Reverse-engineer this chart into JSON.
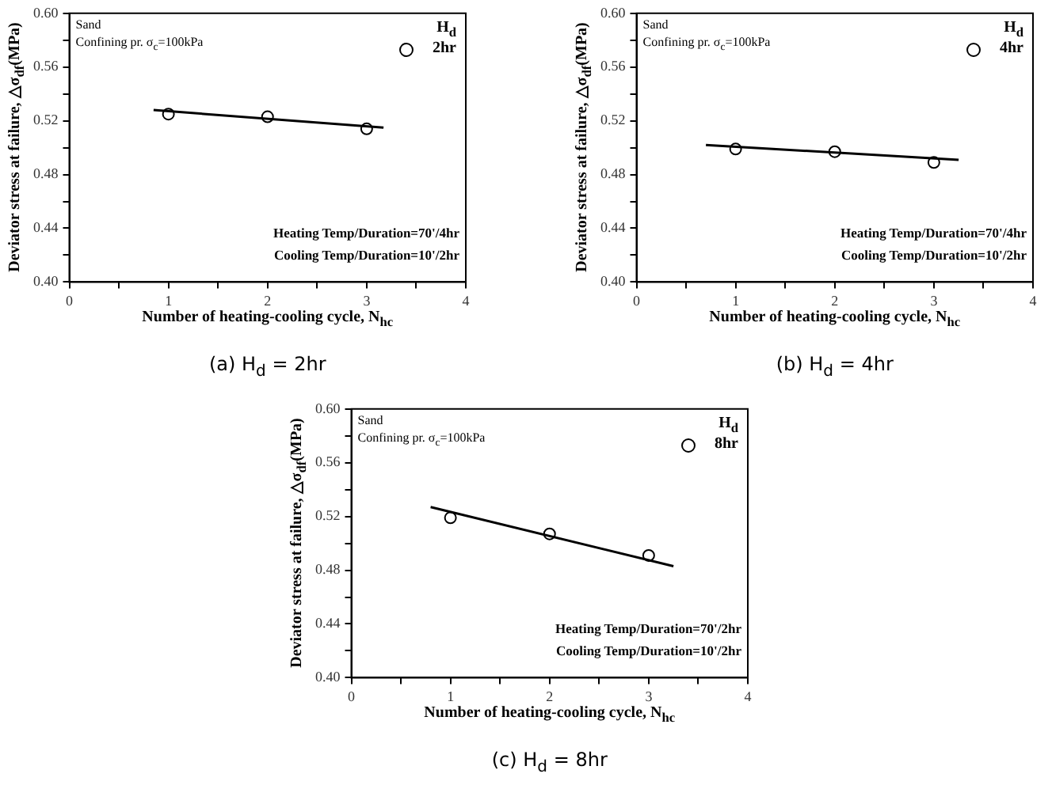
{
  "chart_data": [
    {
      "type": "scatter",
      "title": "(a)  H$_{d}$ = 2hr",
      "xlabel": "Number of heating-cooling cycle, N$_{hc}$",
      "ylabel": "Deviator stress at failure, △σ$_{df}$(MPa)",
      "legend_title": "H$_{d}$",
      "annotations": [
        "Sand",
        "Confining pr. σ$_{c}$=100kPa",
        "Heating Temp/Duration=70'/4hr",
        "Cooling Temp/Duration=10'/2hr"
      ],
      "series": [
        {
          "name": "2hr",
          "type": "scatter",
          "marker": "circle",
          "color": "#000000",
          "x": [
            1,
            2,
            3
          ],
          "values": [
            0.525,
            0.523,
            0.514
          ]
        },
        {
          "type": "line",
          "marker": "none",
          "color": "#000000",
          "x": [
            0.85,
            3.17
          ],
          "values": [
            0.528,
            0.515
          ]
        }
      ],
      "xlim": [
        0,
        4
      ],
      "xticks": [
        0,
        {
          "value": 0.5,
          "label": null
        },
        1,
        {
          "value": 1.5,
          "label": null
        },
        2,
        {
          "value": 2.5,
          "label": null
        },
        3,
        {
          "value": 3.5,
          "label": null
        },
        4
      ],
      "ylim": [
        0.4,
        0.6
      ],
      "yticks": [
        {
          "value": 0.4,
          "label": "0.40"
        },
        {
          "value": 0.42,
          "label": null
        },
        0.44,
        {
          "value": 0.46,
          "label": null
        },
        0.48,
        {
          "value": 0.5,
          "label": null
        },
        0.52,
        {
          "value": 0.54,
          "label": null
        },
        0.56,
        {
          "value": 0.58,
          "label": null
        },
        {
          "value": 0.6,
          "label": "0.60"
        }
      ],
      "grid": false,
      "legend": "top right",
      "line_style": "solid"
    },
    {
      "type": "scatter",
      "title": "(b)  H$_{d}$ = 4hr",
      "xlabel": "Number of heating-cooling cycle, N$_{hc}$",
      "ylabel": "Deviator stress at failure, △σ$_{df}$(MPa)",
      "legend_title": "H$_{d}$",
      "annotations": [
        "Sand",
        "Confining pr. σ$_{c}$=100kPa",
        "Heating Temp/Duration=70'/4hr",
        "Cooling Temp/Duration=10'/2hr"
      ],
      "series": [
        {
          "name": "4hr",
          "type": "scatter",
          "marker": "circle",
          "color": "#000000",
          "x": [
            1,
            2,
            3
          ],
          "values": [
            0.499,
            0.497,
            0.489
          ]
        },
        {
          "type": "line",
          "marker": "none",
          "color": "#000000",
          "x": [
            0.7,
            3.25
          ],
          "values": [
            0.502,
            0.491
          ]
        }
      ],
      "xlim": [
        0,
        4
      ],
      "xticks": [
        0,
        {
          "value": 0.5,
          "label": null
        },
        1,
        {
          "value": 1.5,
          "label": null
        },
        2,
        {
          "value": 2.5,
          "label": null
        },
        3,
        {
          "value": 3.5,
          "label": null
        },
        4
      ],
      "ylim": [
        0.4,
        0.6
      ],
      "yticks": [
        {
          "value": 0.4,
          "label": "0.40"
        },
        {
          "value": 0.42,
          "label": null
        },
        0.44,
        {
          "value": 0.46,
          "label": null
        },
        0.48,
        {
          "value": 0.5,
          "label": null
        },
        0.52,
        {
          "value": 0.54,
          "label": null
        },
        0.56,
        {
          "value": 0.58,
          "label": null
        },
        {
          "value": 0.6,
          "label": "0.60"
        }
      ],
      "grid": false,
      "legend": "top right",
      "line_style": "solid"
    },
    {
      "type": "scatter",
      "title": "(c)  H$_{d}$ = 8hr",
      "xlabel": "Number of heating-cooling cycle, N$_{hc}$",
      "ylabel": "Deviator stress at failure, △σ$_{df}$(MPa)",
      "legend_title": "H$_{d}$",
      "annotations": [
        "Sand",
        "Confining pr. σ$_{c}$=100kPa",
        "Heating Temp/Duration=70'/2hr",
        "Cooling Temp/Duration=10'/2hr"
      ],
      "series": [
        {
          "name": "8hr",
          "type": "scatter",
          "marker": "circle",
          "color": "#000000",
          "x": [
            1,
            2,
            3
          ],
          "values": [
            0.519,
            0.507,
            0.491
          ]
        },
        {
          "type": "line",
          "marker": "none",
          "color": "#000000",
          "x": [
            0.8,
            3.25
          ],
          "values": [
            0.527,
            0.483
          ]
        }
      ],
      "xlim": [
        0,
        4
      ],
      "xticks": [
        0,
        {
          "value": 0.5,
          "label": null
        },
        1,
        {
          "value": 1.5,
          "label": null
        },
        2,
        {
          "value": 2.5,
          "label": null
        },
        3,
        {
          "value": 3.5,
          "label": null
        },
        4
      ],
      "ylim": [
        0.4,
        0.6
      ],
      "yticks": [
        {
          "value": 0.4,
          "label": "0.40"
        },
        {
          "value": 0.42,
          "label": null
        },
        0.44,
        {
          "value": 0.46,
          "label": null
        },
        0.48,
        {
          "value": 0.5,
          "label": null
        },
        0.52,
        {
          "value": 0.54,
          "label": null
        },
        0.56,
        {
          "value": 0.58,
          "label": null
        },
        {
          "value": 0.6,
          "label": "0.60"
        }
      ],
      "grid": false,
      "legend": "top right",
      "line_style": "solid"
    }
  ]
}
